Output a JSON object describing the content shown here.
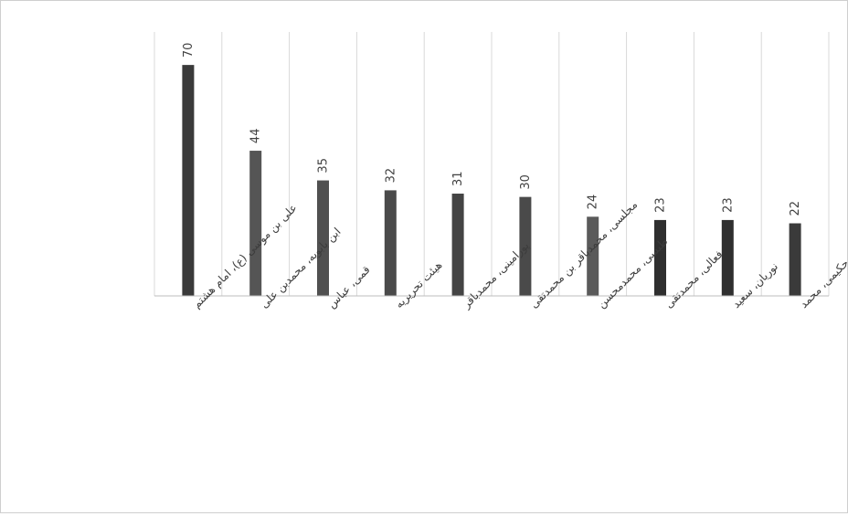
{
  "chart_data": {
    "type": "bar",
    "categories": [
      "علی بن موسی (ع)، امام هشتم",
      "ابن بابویه، محمدبن علی",
      "قمی، عباس",
      "هیئت تحریریه",
      "پورامینی، محمدباقر",
      "مجلسی، محمدباقر بن محمدتقی",
      "طبسی، محمدمحسن",
      "فعالی، محمدتقی",
      "نوریان، سعید",
      "حکیمی، محمد"
    ],
    "values": [
      70,
      44,
      35,
      32,
      31,
      30,
      24,
      23,
      23,
      22
    ],
    "bar_colors": [
      "#3a3a3a",
      "#555555",
      "#505050",
      "#4a4a4a",
      "#444444",
      "#4a4a4a",
      "#5a5a5a",
      "#2f2f2f",
      "#2f2f2f",
      "#3a3a3a"
    ],
    "data_labels": true,
    "ylim": [
      0,
      80
    ],
    "grid": "vertical-category-lines",
    "title": "",
    "xlabel": "",
    "ylabel": ""
  }
}
